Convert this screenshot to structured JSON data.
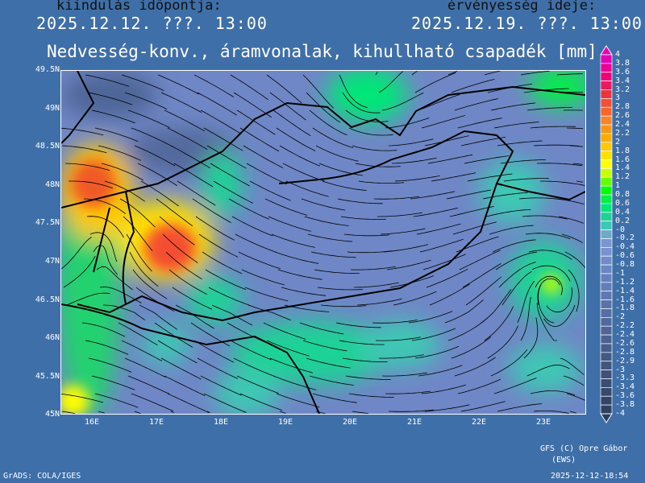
{
  "header": {
    "init_label": "kiindulás időpontja:",
    "init_value": "2025.12.12. ???. 13:00",
    "valid_label": "érvényesség ideje:",
    "valid_value": "2025.12.19. ???. 13:00",
    "title": "Nedvesség-konv., áramvonalak, kihullható csapadék [mm]"
  },
  "axes": {
    "lat_labels": [
      "49.5N",
      "49N",
      "48.5N",
      "48N",
      "47.5N",
      "47N",
      "46.5N",
      "46N",
      "45.5N",
      "45N"
    ],
    "lon_labels": [
      "16E",
      "17E",
      "18E",
      "19E",
      "20E",
      "21E",
      "22E",
      "23E"
    ]
  },
  "colorbar": {
    "labels": [
      "4",
      "3.8",
      "3.6",
      "3.4",
      "3.2",
      "3",
      "2.8",
      "2.6",
      "2.4",
      "2.2",
      "2",
      "1.8",
      "1.6",
      "1.4",
      "1.2",
      "1",
      "0.8",
      "0.6",
      "0.4",
      "0.2",
      "-0",
      "-0.2",
      "-0.4",
      "-0.6",
      "-0.8",
      "-1",
      "-1.2",
      "-1.4",
      "-1.6",
      "-1.8",
      "-2",
      "-2.2",
      "-2.4",
      "-2.6",
      "-2.8",
      "-2.9",
      "-3",
      "-3.3",
      "-3.4",
      "-3.6",
      "-3.8",
      "-4"
    ],
    "colors": [
      "#e600b4",
      "#ec0096",
      "#f00078",
      "#f0185a",
      "#f0323c",
      "#f54e32",
      "#fa6428",
      "#fa8228",
      "#fa9614",
      "#ffaa00",
      "#ffc800",
      "#ffe100",
      "#ffff00",
      "#c8ff00",
      "#64ff00",
      "#00ff00",
      "#00f046",
      "#00e678",
      "#1ed296",
      "#3cc8b4",
      "#6eaac8",
      "#7896d2",
      "#7891d0",
      "#708bca",
      "#6a86c4",
      "#6682be",
      "#627db8",
      "#5e78b0",
      "#5a72a8",
      "#566ea2",
      "#52699c",
      "#4e6596",
      "#4b6190",
      "#485d8a",
      "#445984",
      "#41557e",
      "#3e5178",
      "#3a4d72",
      "#37496c",
      "#334566",
      "#2f4160",
      "#2b3d5a"
    ]
  },
  "footer": {
    "credit_line1": "GFS (C) Opre Gábor",
    "credit_line2": "(EWS)",
    "grads": "GrADS: COLA/IGES",
    "timestamp": "2025-12-12-18:54"
  }
}
